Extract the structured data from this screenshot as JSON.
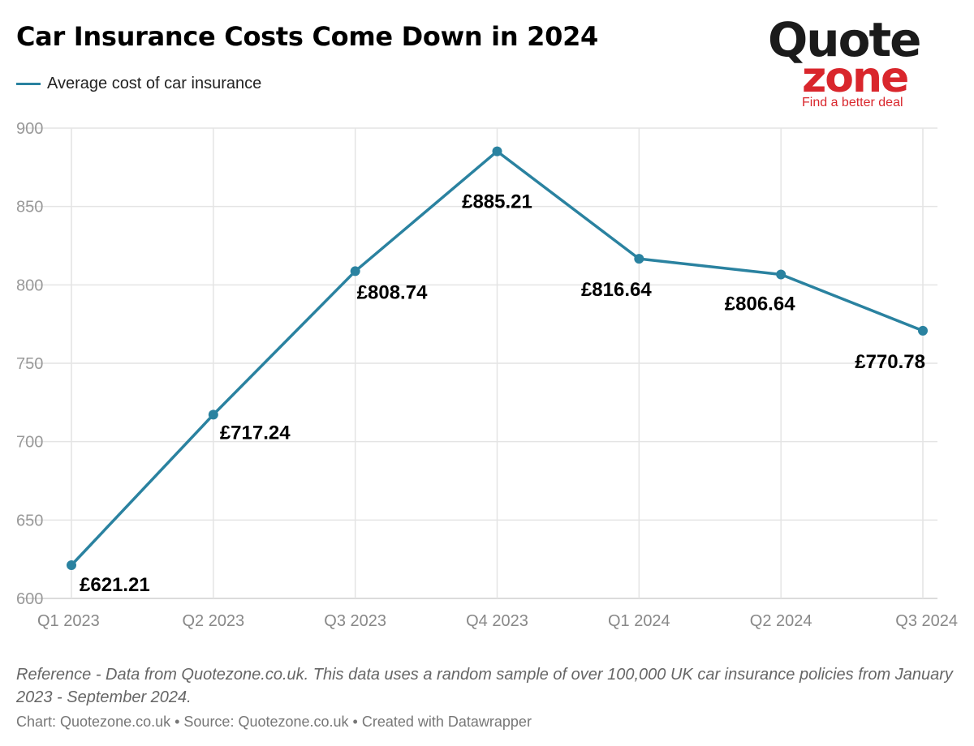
{
  "chart_data": {
    "type": "line",
    "title": "Car Insurance Costs Come Down in 2024",
    "legend": [
      "Average cost of car insurance"
    ],
    "legend_position": "top-left",
    "categories": [
      "Q1 2023",
      "Q2 2023",
      "Q3 2023",
      "Q4 2023",
      "Q1 2024",
      "Q2 2024",
      "Q3 2024"
    ],
    "series": [
      {
        "name": "Average cost of car insurance",
        "values": [
          621.21,
          717.24,
          808.74,
          885.21,
          816.64,
          806.64,
          770.78
        ],
        "labels": [
          "£621.21",
          "£717.24",
          "£808.74",
          "£885.21",
          "£816.64",
          "£806.64",
          "£770.78"
        ],
        "color": "#2a82a0"
      }
    ],
    "ylim": [
      600,
      900
    ],
    "yticks": [
      600,
      650,
      700,
      750,
      800,
      850,
      900
    ],
    "grid": true,
    "xlabel": "",
    "ylabel": ""
  },
  "logo": {
    "word1": "Quote",
    "word2": "zone",
    "tagline": "Find a better deal"
  },
  "footer": {
    "note": "Reference - Data from Quotezone.co.uk. This data uses a random sample of over 100,000 UK car insurance policies from January 2023 - September 2024.",
    "credit": "Chart: Quotezone.co.uk • Source: Quotezone.co.uk • Created with Datawrapper"
  }
}
